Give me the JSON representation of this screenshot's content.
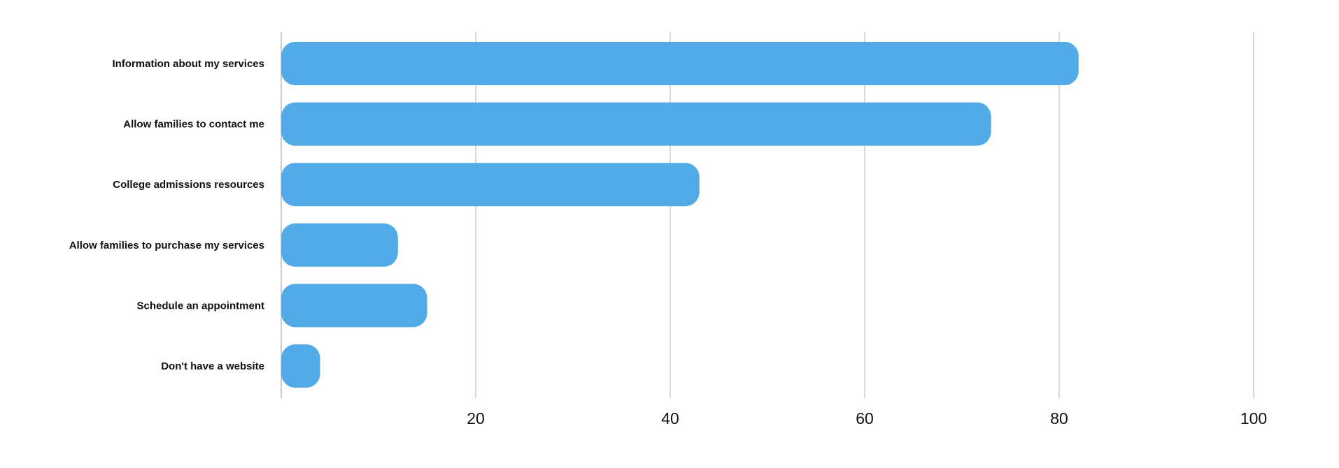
{
  "chart_data": {
    "type": "bar",
    "orientation": "horizontal",
    "categories": [
      "Information about my services",
      "Allow families to contact me",
      "College admissions resources",
      "Allow families to purchase my services",
      "Schedule an appointment",
      "Don't have a website"
    ],
    "values": [
      82,
      73,
      43,
      12,
      15,
      4
    ],
    "xlim": [
      0,
      100
    ],
    "xticks": [
      20,
      40,
      60,
      80,
      100
    ],
    "title": "",
    "xlabel": "",
    "ylabel": "",
    "grid": "vertical",
    "legend": "none",
    "bar_color": "#52aae6"
  }
}
